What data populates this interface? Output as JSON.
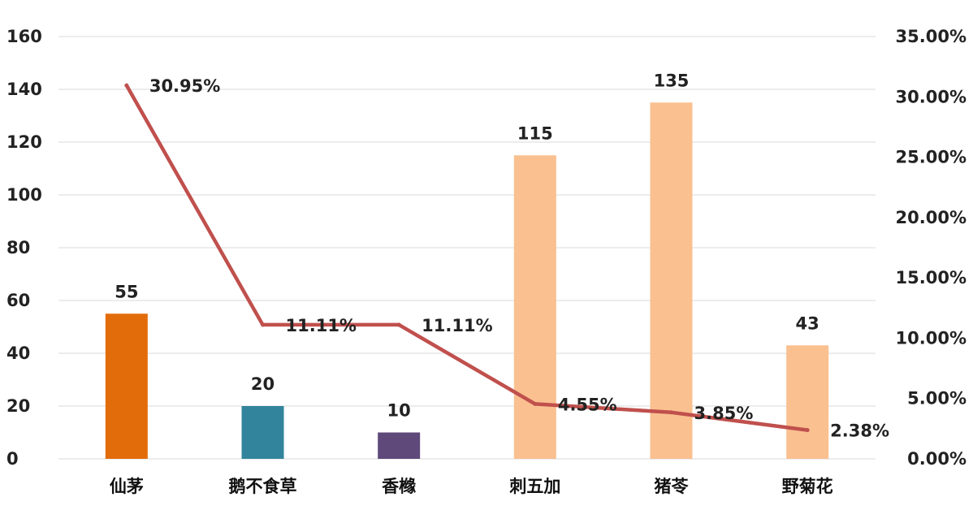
{
  "chart_data": {
    "type": "bar+line",
    "categories": [
      "仙茅",
      "鹅不食草",
      "香橼",
      "刺五加",
      "猪苓",
      "野菊花"
    ],
    "series": [
      {
        "type": "bar",
        "axis": "left",
        "values": [
          55,
          20,
          10,
          115,
          135,
          43
        ],
        "value_labels": [
          "55",
          "20",
          "10",
          "115",
          "135",
          "43"
        ],
        "colors": [
          "#e36c0a",
          "#31849b",
          "#5f497a",
          "#fac090",
          "#fac090",
          "#fac090"
        ]
      },
      {
        "type": "line",
        "axis": "right",
        "values": [
          30.95,
          11.11,
          11.11,
          4.55,
          3.85,
          2.38
        ],
        "value_labels": [
          "30.95%",
          "11.11%",
          "11.11%",
          "4.55%",
          "3.85%",
          "2.38%"
        ],
        "color": "#c0504d"
      }
    ],
    "y_left": {
      "lim": [
        0,
        160
      ],
      "ticks": [
        0,
        20,
        40,
        60,
        80,
        100,
        120,
        140,
        160
      ],
      "tick_labels": [
        "0",
        "20",
        "40",
        "60",
        "80",
        "100",
        "120",
        "140",
        "160"
      ]
    },
    "y_right": {
      "lim": [
        0,
        35
      ],
      "ticks": [
        0,
        5,
        10,
        15,
        20,
        25,
        30,
        35
      ],
      "tick_labels": [
        "0.00%",
        "5.00%",
        "10.00%",
        "15.00%",
        "20.00%",
        "25.00%",
        "30.00%",
        "35.00%"
      ]
    },
    "grid": true,
    "legend": "none"
  }
}
